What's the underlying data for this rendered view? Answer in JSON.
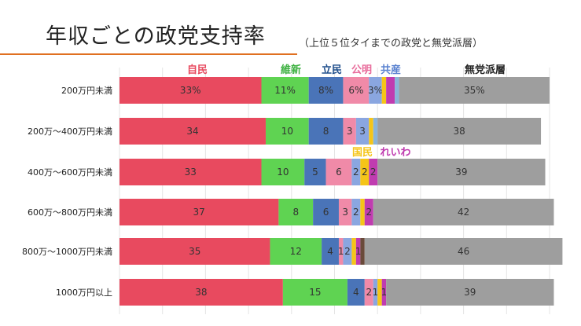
{
  "chart_data": {
    "type": "bar",
    "orientation": "horizontal",
    "stacked": true,
    "title": "年収ごとの政党支持率",
    "subtitle": "（上位５位タイまでの政党と無党派層）",
    "categories": [
      "200万円未満",
      "200万～400万円未満",
      "400万～600万円未満",
      "600万～800万円未満",
      "800万～1000万円未満",
      "1000万円以上"
    ],
    "series": [
      {
        "name": "自民",
        "color": "#e84a5f",
        "values": [
          33,
          34,
          33,
          37,
          35,
          38
        ],
        "labels": [
          "33%",
          "34",
          "33",
          "37",
          "35",
          "38"
        ]
      },
      {
        "name": "維新",
        "color": "#5fd352",
        "values": [
          11,
          10,
          10,
          8,
          12,
          15
        ],
        "labels": [
          "11%",
          "10",
          "10",
          "8",
          "12",
          "15"
        ]
      },
      {
        "name": "立民",
        "color": "#4a74b8",
        "values": [
          8,
          8,
          5,
          6,
          4,
          4
        ],
        "labels": [
          "8%",
          "8",
          "5",
          "6",
          "4",
          "4"
        ]
      },
      {
        "name": "公明",
        "color": "#f08aa8",
        "values": [
          6,
          3,
          6,
          3,
          1,
          2
        ],
        "labels": [
          "6%",
          "3",
          "6",
          "3",
          "1",
          "2"
        ]
      },
      {
        "name": "共産",
        "color": "#8aa6e0",
        "values": [
          3,
          3,
          2,
          2,
          2,
          1
        ],
        "labels": [
          "3%",
          "3",
          "2",
          "2",
          "2",
          "1"
        ]
      },
      {
        "name": "国民",
        "color": "#f5c518",
        "values": [
          1,
          1,
          2,
          1,
          1,
          1
        ],
        "labels": [
          "",
          "",
          "2",
          "",
          "",
          ""
        ]
      },
      {
        "name": "れいわ",
        "color": "#c03cb0",
        "values": [
          2,
          0,
          2,
          2,
          1,
          1
        ],
        "labels": [
          "",
          "",
          "2",
          "2",
          "1",
          "1"
        ]
      },
      {
        "name": "",
        "color": "#6a4a3a",
        "values": [
          0,
          0,
          0,
          0,
          1,
          0
        ],
        "labels": [
          "",
          "",
          "",
          "",
          "",
          ""
        ]
      },
      {
        "name": "",
        "color": "#8ab4d8",
        "values": [
          1,
          1,
          0,
          0,
          0,
          0
        ],
        "labels": [
          "",
          "",
          "",
          "",
          "",
          ""
        ]
      },
      {
        "name": "無党派層",
        "color": "#9e9e9e",
        "values": [
          35,
          38,
          39,
          42,
          46,
          39
        ],
        "labels": [
          "35%",
          "38",
          "39",
          "42",
          "46",
          "39"
        ]
      }
    ],
    "legend": [
      {
        "name": "自民",
        "color": "#e84a5f"
      },
      {
        "name": "維新",
        "color": "#3cb040"
      },
      {
        "name": "立民",
        "color": "#1f4e8c"
      },
      {
        "name": "公明",
        "color": "#e86a9a"
      },
      {
        "name": "共産",
        "color": "#5a82d0"
      },
      {
        "name": "無党派層",
        "color": "#222222"
      },
      {
        "name": "国民",
        "color": "#f5c518"
      },
      {
        "name": "れいわ",
        "color": "#c03cb0"
      }
    ],
    "grid": true,
    "xlim": [
      0,
      105
    ]
  }
}
